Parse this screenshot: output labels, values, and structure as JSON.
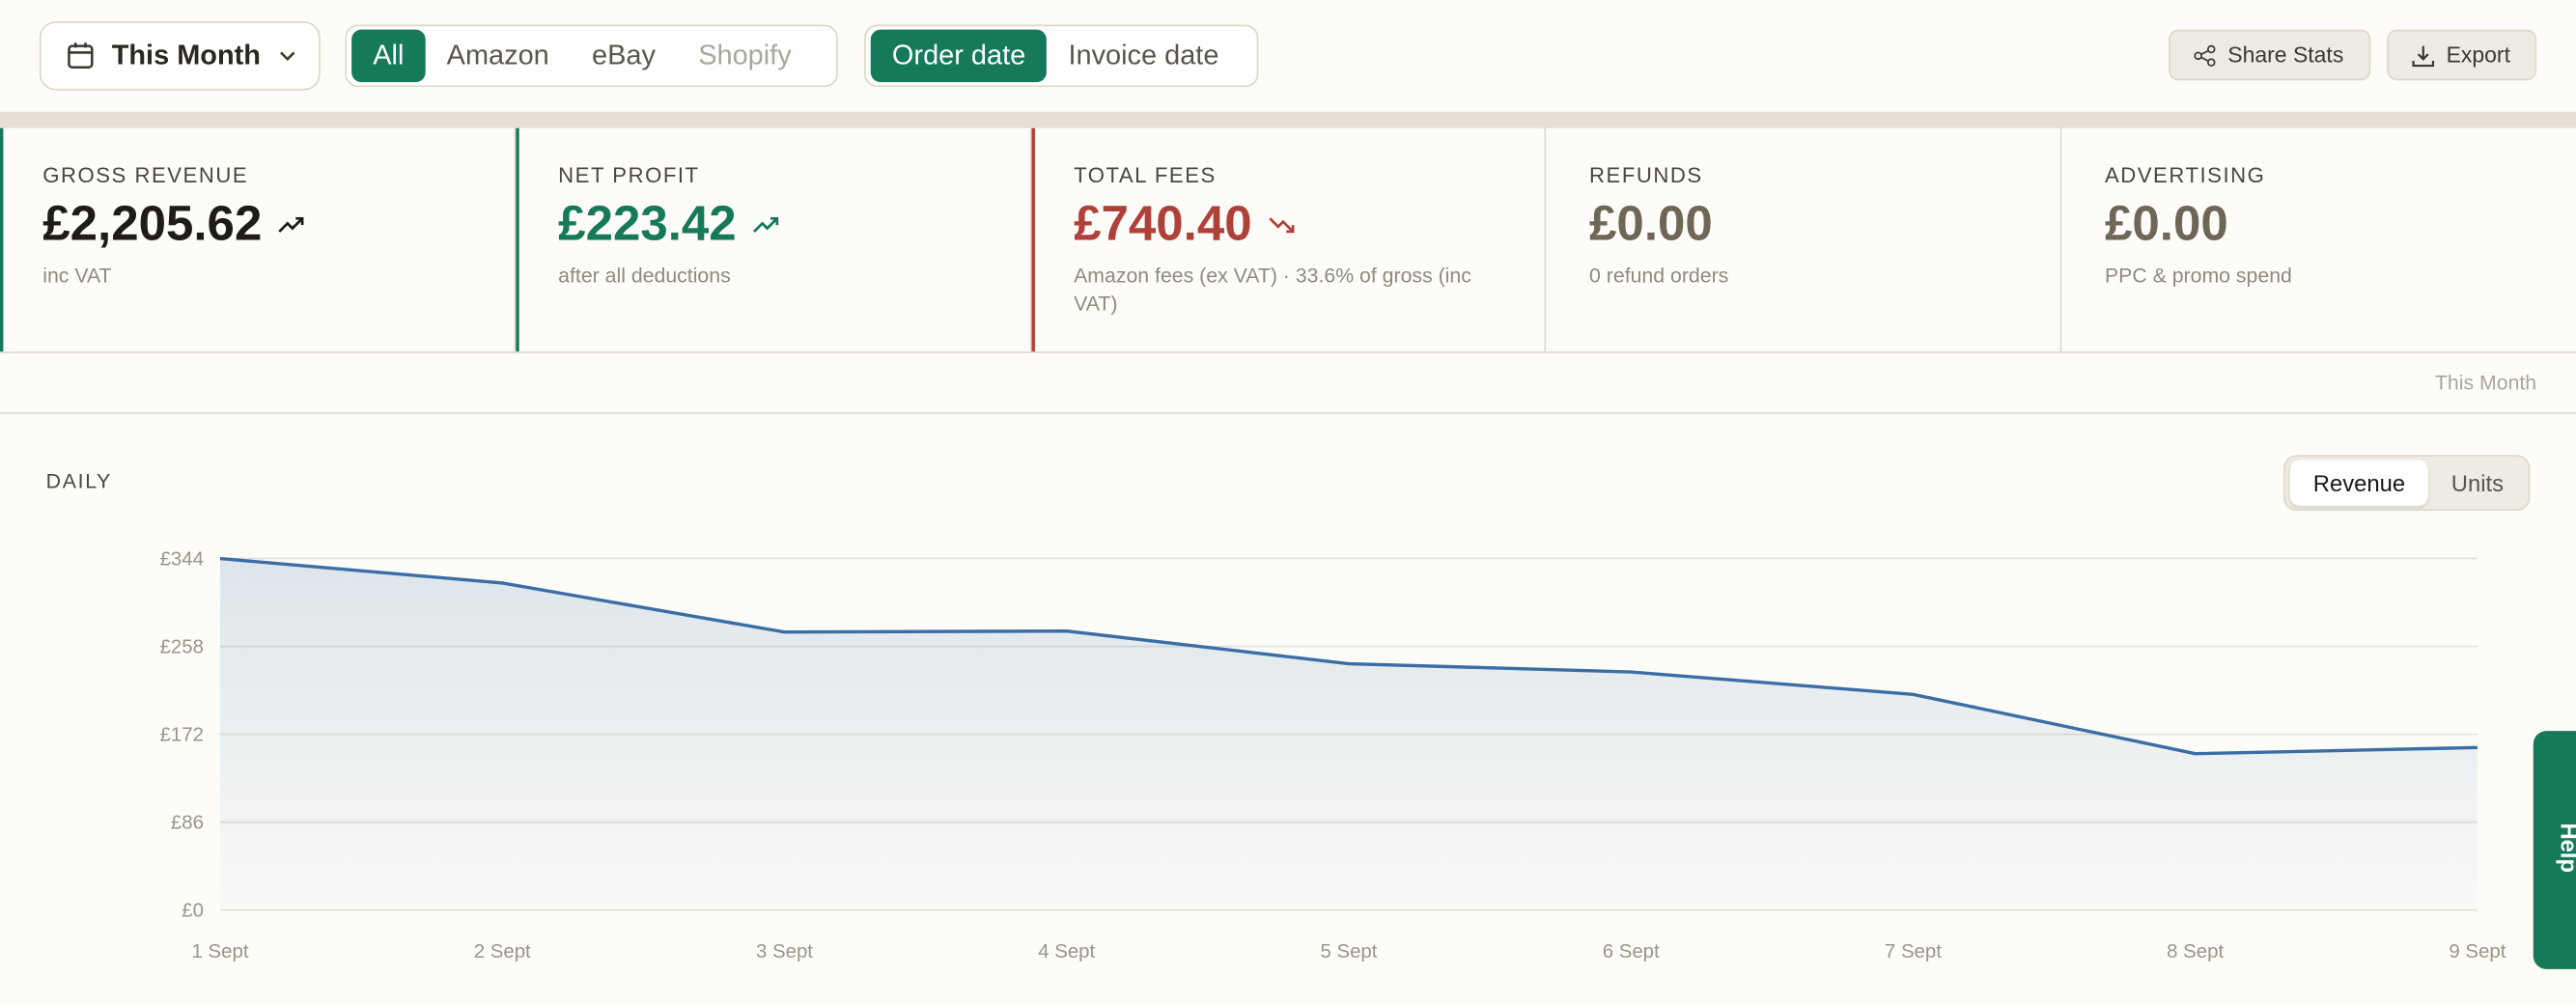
{
  "toolbar": {
    "period": "This Month",
    "channels": [
      "All",
      "Amazon",
      "eBay",
      "Shopify"
    ],
    "date_modes": [
      "Order date",
      "Invoice date"
    ],
    "actions": [
      "Share Stats",
      "Export"
    ]
  },
  "stats": [
    {
      "label": "GROSS REVENUE",
      "value": "£2,205.62",
      "note": "inc VAT",
      "trend": "up"
    },
    {
      "label": "NET PROFIT",
      "value": "£223.42",
      "note": "after all deductions",
      "trend": "up"
    },
    {
      "label": "TOTAL FEES",
      "value": "£740.40",
      "note": "Amazon fees (ex VAT) · 33.6% of gross (inc VAT)",
      "trend": "down"
    },
    {
      "label": "REFUNDS",
      "value": "£0.00",
      "note": "0 refund orders"
    },
    {
      "label": "ADVERTISING",
      "value": "£0.00",
      "note": "PPC & promo spend"
    }
  ],
  "period_caption": "This Month",
  "chart_data": {
    "type": "line",
    "title": "DAILY",
    "modes": [
      "Revenue",
      "Units"
    ],
    "categories": [
      "1 Sept",
      "2 Sept",
      "3 Sept",
      "4 Sept",
      "5 Sept",
      "6 Sept",
      "7 Sept",
      "8 Sept",
      "9 Sept"
    ],
    "values": [
      344,
      320,
      272,
      273,
      241,
      233,
      211,
      153,
      159
    ],
    "color": "#3a6ea5",
    "ylim": [
      0,
      344
    ],
    "yticks": [
      {
        "value": 0,
        "label": "£0"
      },
      {
        "value": 86,
        "label": "£86"
      },
      {
        "value": 172,
        "label": "£172"
      },
      {
        "value": 258,
        "label": "£258"
      },
      {
        "value": 344,
        "label": "£344"
      }
    ],
    "grid": true
  },
  "help": "Help"
}
